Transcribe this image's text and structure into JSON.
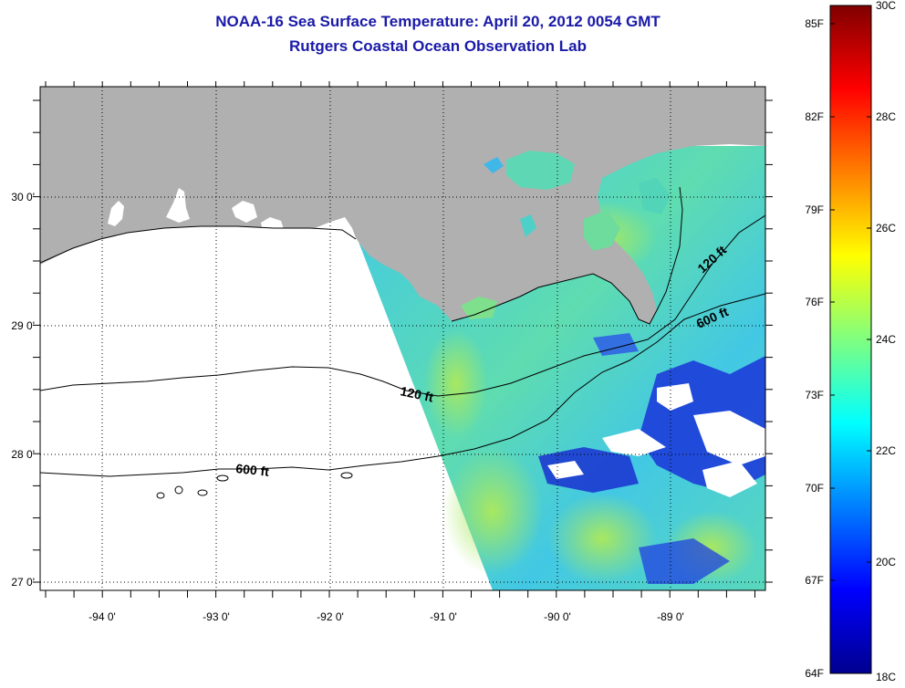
{
  "header": {
    "title": "NOAA-16 Sea Surface Temperature:  April 20, 2012 0054 GMT",
    "subtitle": "Rutgers Coastal Ocean Observation Lab"
  },
  "map": {
    "longitude_labels": [
      "-94 0'",
      "-93 0'",
      "-92 0'",
      "-91 0'",
      "-90 0'",
      "-89 0'"
    ],
    "latitude_labels": [
      "30 0'",
      "29 0'",
      "28 0'",
      "27 0'"
    ],
    "grid": "dotted",
    "contour_labels": [
      {
        "text": "120 ft",
        "part": "west"
      },
      {
        "text": "600 ft",
        "part": "west"
      },
      {
        "text": "120 ft",
        "part": "east"
      },
      {
        "text": "600 ft",
        "part": "east"
      }
    ],
    "colors": {
      "land": "#b0b0b0",
      "outline": "#000000",
      "title": "#1a1aa8"
    }
  },
  "colorbar": {
    "min_label": "18C",
    "max_label": "30C",
    "f_labels": [
      "64F",
      "67F",
      "70F",
      "73F",
      "76F",
      "79F",
      "82F",
      "85F"
    ],
    "c_labels": [
      "18C",
      "20C",
      "22C",
      "24C",
      "26C",
      "28C",
      "30C"
    ],
    "colormap": "jet"
  }
}
